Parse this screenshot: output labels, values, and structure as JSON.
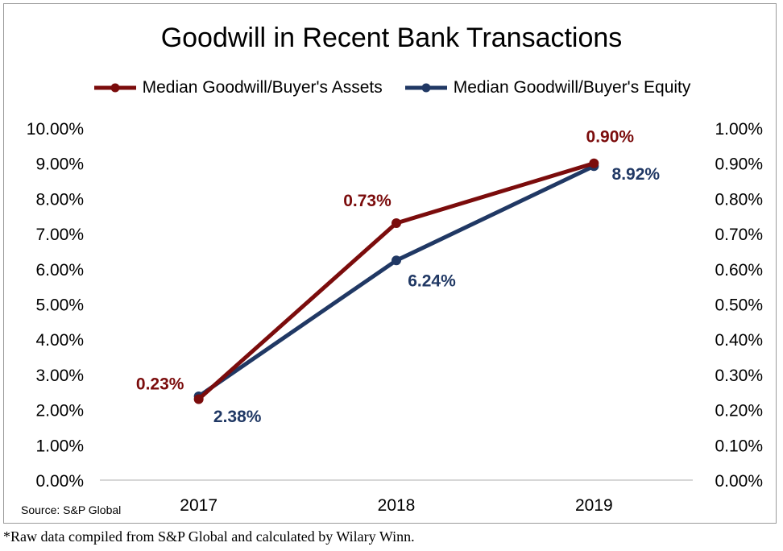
{
  "chart_data": {
    "type": "line",
    "title": "Goodwill in Recent Bank Transactions",
    "categories": [
      "2017",
      "2018",
      "2019"
    ],
    "y_left": {
      "ylim": [
        0,
        10
      ],
      "ticks": [
        "0.00%",
        "1.00%",
        "2.00%",
        "3.00%",
        "4.00%",
        "5.00%",
        "6.00%",
        "7.00%",
        "8.00%",
        "9.00%",
        "10.00%"
      ]
    },
    "y_right": {
      "ylim": [
        0,
        1
      ],
      "ticks": [
        "0.00%",
        "0.10%",
        "0.20%",
        "0.30%",
        "0.40%",
        "0.50%",
        "0.60%",
        "0.70%",
        "0.80%",
        "0.90%",
        "1.00%"
      ]
    },
    "series": [
      {
        "name": "Median Goodwill/Buyer's Assets",
        "axis": "right",
        "color": "#7b0c0c",
        "values": [
          0.23,
          0.73,
          0.9
        ],
        "labels": [
          "0.23%",
          "0.73%",
          "0.90%"
        ]
      },
      {
        "name": "Median Goodwill/Buyer's Equity",
        "axis": "left",
        "color": "#203864",
        "values": [
          2.38,
          6.24,
          8.92
        ],
        "labels": [
          "2.38%",
          "6.24%",
          "8.92%"
        ]
      }
    ],
    "grid": false,
    "legend_position": "top"
  },
  "source": "Source:  S&P Global",
  "footnote": "*Raw data compiled from S&P Global and calculated by Wilary Winn."
}
